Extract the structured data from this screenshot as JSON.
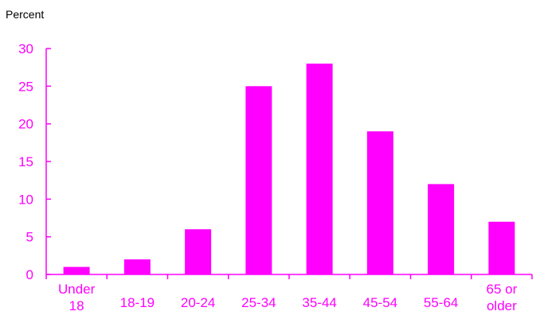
{
  "chart_data": {
    "type": "bar",
    "title": "",
    "xlabel": "",
    "ylabel": "Percent",
    "categories": [
      [
        "Under",
        "18"
      ],
      [
        "18-19"
      ],
      [
        "20-24"
      ],
      [
        "25-34"
      ],
      [
        "35-44"
      ],
      [
        "45-54"
      ],
      [
        "55-64"
      ],
      [
        "65 or",
        "older"
      ]
    ],
    "values": [
      1,
      2,
      6,
      25,
      28,
      19,
      12,
      7
    ],
    "ylim": [
      0,
      30
    ],
    "yticks": [
      0,
      5,
      10,
      15,
      20,
      25,
      30
    ],
    "grid": false,
    "legend": "none"
  },
  "colors": {
    "bar": "#ff00ff",
    "axis": "#ff00ff",
    "tick_text": "#ff00ff",
    "label_text": "#000000"
  }
}
